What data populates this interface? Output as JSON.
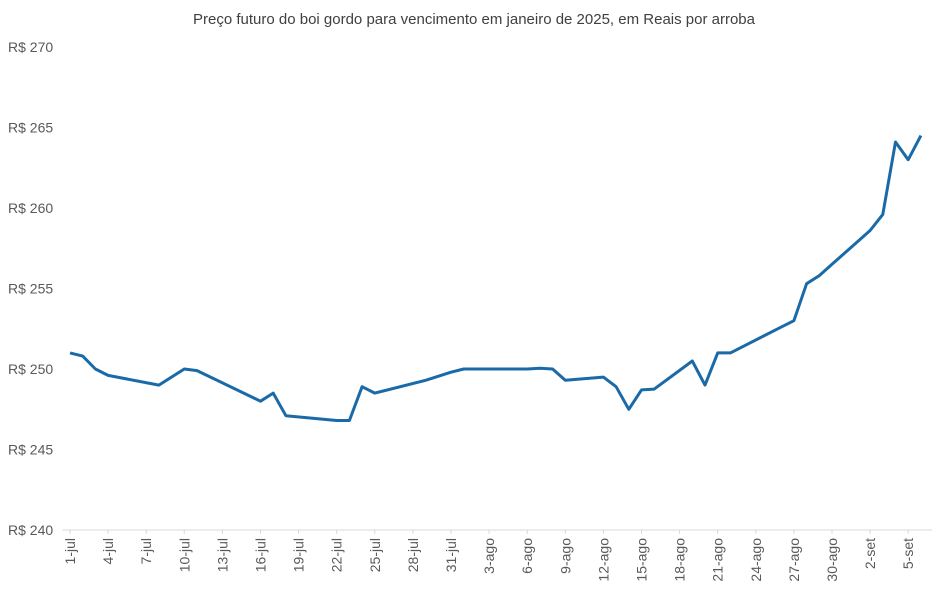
{
  "chart_data": {
    "type": "line",
    "title": "Preço futuro do boi gordo para vencimento em janeiro de 2025, em Reais por arroba",
    "x": [
      "1-jul",
      "2-jul",
      "3-jul",
      "4-jul",
      "8-jul",
      "10-jul",
      "11-jul",
      "16-jul",
      "17-jul",
      "18-jul",
      "22-jul",
      "23-jul",
      "24-jul",
      "25-jul",
      "29-jul",
      "31-jul",
      "1-ago",
      "6-ago",
      "7-ago",
      "8-ago",
      "9-ago",
      "12-ago",
      "13-ago",
      "14-ago",
      "15-ago",
      "16-ago",
      "19-ago",
      "20-ago",
      "21-ago",
      "22-ago",
      "26-ago",
      "27-ago",
      "28-ago",
      "29-ago",
      "30-ago",
      "2-set",
      "3-set",
      "4-set",
      "5-set",
      "6-set"
    ],
    "series": [
      {
        "name": "Preço futuro",
        "color": "#1b6aa8",
        "values": [
          251.0,
          250.8,
          250.0,
          249.6,
          249.0,
          250.0,
          249.9,
          248.0,
          248.5,
          247.1,
          246.8,
          246.8,
          248.9,
          248.5,
          249.3,
          249.8,
          250.0,
          250.0,
          250.05,
          250.0,
          249.3,
          249.5,
          248.9,
          247.5,
          248.7,
          248.75,
          250.5,
          249.0,
          251.0,
          251.0,
          252.6,
          253.0,
          255.3,
          255.8,
          256.5,
          258.6,
          259.6,
          264.1,
          263.0,
          264.5
        ]
      }
    ],
    "xticks": [
      "1-jul",
      "4-jul",
      "7-jul",
      "10-jul",
      "13-jul",
      "16-jul",
      "19-jul",
      "22-jul",
      "25-jul",
      "28-jul",
      "31-jul",
      "3-ago",
      "6-ago",
      "9-ago",
      "12-ago",
      "15-ago",
      "18-ago",
      "21-ago",
      "24-ago",
      "27-ago",
      "30-ago",
      "2-set",
      "5-set"
    ],
    "ylim": [
      240,
      270
    ],
    "yticks": [
      {
        "value": 240,
        "label": "R$ 240"
      },
      {
        "value": 245,
        "label": "R$ 245"
      },
      {
        "value": 250,
        "label": "R$ 250"
      },
      {
        "value": 255,
        "label": "R$ 255"
      },
      {
        "value": 260,
        "label": "R$ 260"
      },
      {
        "value": 265,
        "label": "R$ 265"
      },
      {
        "value": 270,
        "label": "R$ 270"
      }
    ],
    "grid": false
  }
}
